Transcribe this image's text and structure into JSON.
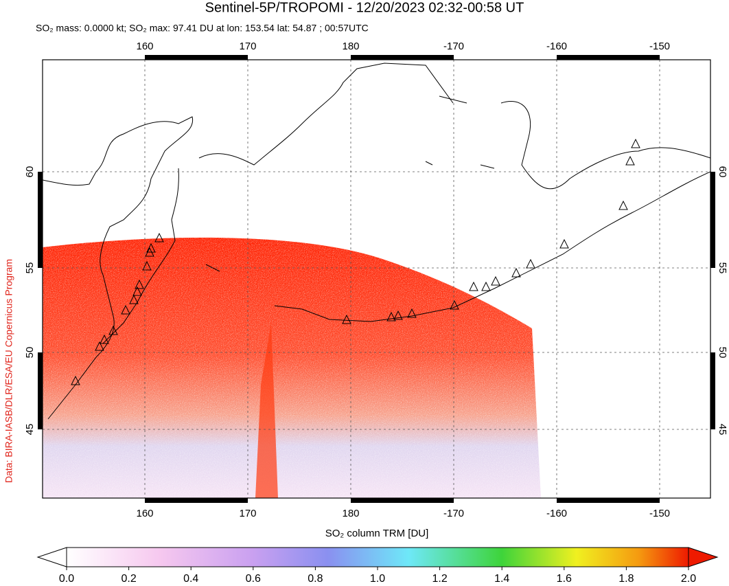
{
  "title": "Sentinel-5P/TROPOMI - 12/20/2023 02:32-00:58 UT",
  "subtitle": "SO₂ mass: 0.0000 kt; SO₂ max: 97.41 DU at lon: 153.54 lat: 54.87 ; 00:57UTC",
  "side_label": "Data: BIRA-IASB/DLR/ESA/EU Copernicus Program",
  "map": {
    "lon_ticks": [
      160,
      170,
      180,
      -170,
      -160,
      -150
    ],
    "lat_ticks": [
      60,
      55,
      50,
      45
    ],
    "grid": true
  },
  "colorbar": {
    "label": "SO₂ column TRM [DU]",
    "range": [
      0,
      2
    ],
    "ticks": [
      {
        "value": 0,
        "label": "0.0"
      },
      {
        "value": 0.2,
        "label": "0.2"
      },
      {
        "value": 0.4,
        "label": "0.4"
      },
      {
        "value": 0.6,
        "label": "0.6"
      },
      {
        "value": 0.8,
        "label": "0.8"
      },
      {
        "value": 1,
        "label": "1.0"
      },
      {
        "value": 1.2,
        "label": "1.2"
      },
      {
        "value": 1.4,
        "label": "1.4"
      },
      {
        "value": 1.6,
        "label": "1.6"
      },
      {
        "value": 1.8,
        "label": "1.8"
      },
      {
        "value": 2,
        "label": "2.0"
      }
    ]
  }
}
